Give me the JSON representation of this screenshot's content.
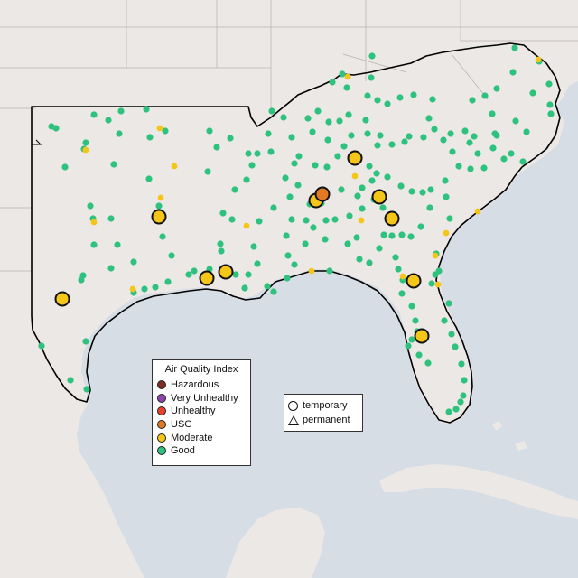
{
  "legend": {
    "title": "Air Quality Index",
    "categories": [
      {
        "label": "Hazardous",
        "color": "#7e2d24"
      },
      {
        "label": "Very Unhealthy",
        "color": "#8e44ad"
      },
      {
        "label": "Unhealthy",
        "color": "#e8412c"
      },
      {
        "label": "USG",
        "color": "#e07b23"
      },
      {
        "label": "Moderate",
        "color": "#f5c518"
      },
      {
        "label": "Good",
        "color": "#2ec27e"
      }
    ]
  },
  "site_legend": {
    "items": [
      {
        "label": "temporary",
        "icon": "circle-icon"
      },
      {
        "label": "permanent",
        "icon": "triangle-icon"
      }
    ]
  },
  "colors": {
    "water": "#d6dde4",
    "land": "#ece8e6",
    "border": "#000000",
    "good": "#2ec27e",
    "moderate": "#f5c518",
    "usg": "#e07b23"
  }
}
